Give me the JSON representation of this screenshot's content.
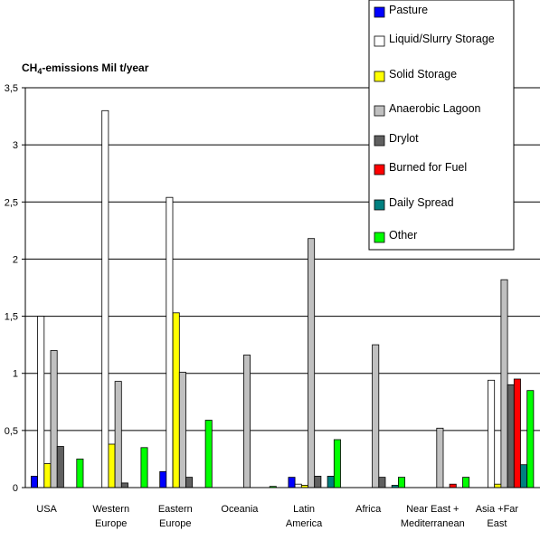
{
  "chart_data": {
    "type": "bar",
    "ylabel_main": "CH",
    "ylabel_sub": "4",
    "ylabel_rest": "-emissions Mil t/year",
    "ylim": [
      0,
      3.5
    ],
    "yticks": [
      "0",
      "0,5",
      "1",
      "1,5",
      "2",
      "2,5",
      "3",
      "3,5"
    ],
    "ytick_values": [
      0,
      0.5,
      1,
      1.5,
      2,
      2.5,
      3,
      3.5
    ],
    "grid": true,
    "legend_position": "top-right",
    "categories": [
      [
        "USA"
      ],
      [
        "Western",
        "Europe"
      ],
      [
        "Eastern",
        "Europe"
      ],
      [
        "Oceania"
      ],
      [
        "Latin",
        "America"
      ],
      [
        "Africa"
      ],
      [
        "Near East +",
        "Mediterranean"
      ],
      [
        "Asia +Far",
        "East"
      ]
    ],
    "series": [
      {
        "name": "Pasture",
        "color": "#0000ff",
        "values": [
          0.1,
          0.0,
          0.14,
          0.0,
          0.09,
          0.0,
          0.0,
          0.0
        ]
      },
      {
        "name": "Liquid/Slurry Storage",
        "color": "#ffffff",
        "values": [
          1.5,
          3.3,
          2.54,
          0.0,
          0.03,
          0.0,
          0.0,
          0.94
        ]
      },
      {
        "name": "Solid Storage",
        "color": "#ffff00",
        "values": [
          0.21,
          0.38,
          1.53,
          0.0,
          0.02,
          0.0,
          0.0,
          0.03
        ]
      },
      {
        "name": "Anaerobic Lagoon",
        "color": "#c0c0c0",
        "values": [
          1.2,
          0.93,
          1.01,
          1.16,
          2.18,
          1.25,
          0.52,
          1.82
        ]
      },
      {
        "name": "Drylot",
        "color": "#606060",
        "values": [
          0.36,
          0.04,
          0.09,
          0.0,
          0.1,
          0.09,
          0.0,
          0.9
        ]
      },
      {
        "name": "Burned for Fuel",
        "color": "#ff0000",
        "values": [
          0.0,
          0.0,
          0.0,
          0.0,
          0.0,
          0.0,
          0.03,
          0.95
        ]
      },
      {
        "name": "Daily Spread",
        "color": "#008080",
        "values": [
          0.0,
          0.0,
          0.0,
          0.0,
          0.1,
          0.02,
          0.0,
          0.2
        ]
      },
      {
        "name": "Other",
        "color": "#00ff00",
        "values": [
          0.25,
          0.35,
          0.59,
          0.01,
          0.42,
          0.09,
          0.09,
          0.85
        ]
      }
    ]
  }
}
